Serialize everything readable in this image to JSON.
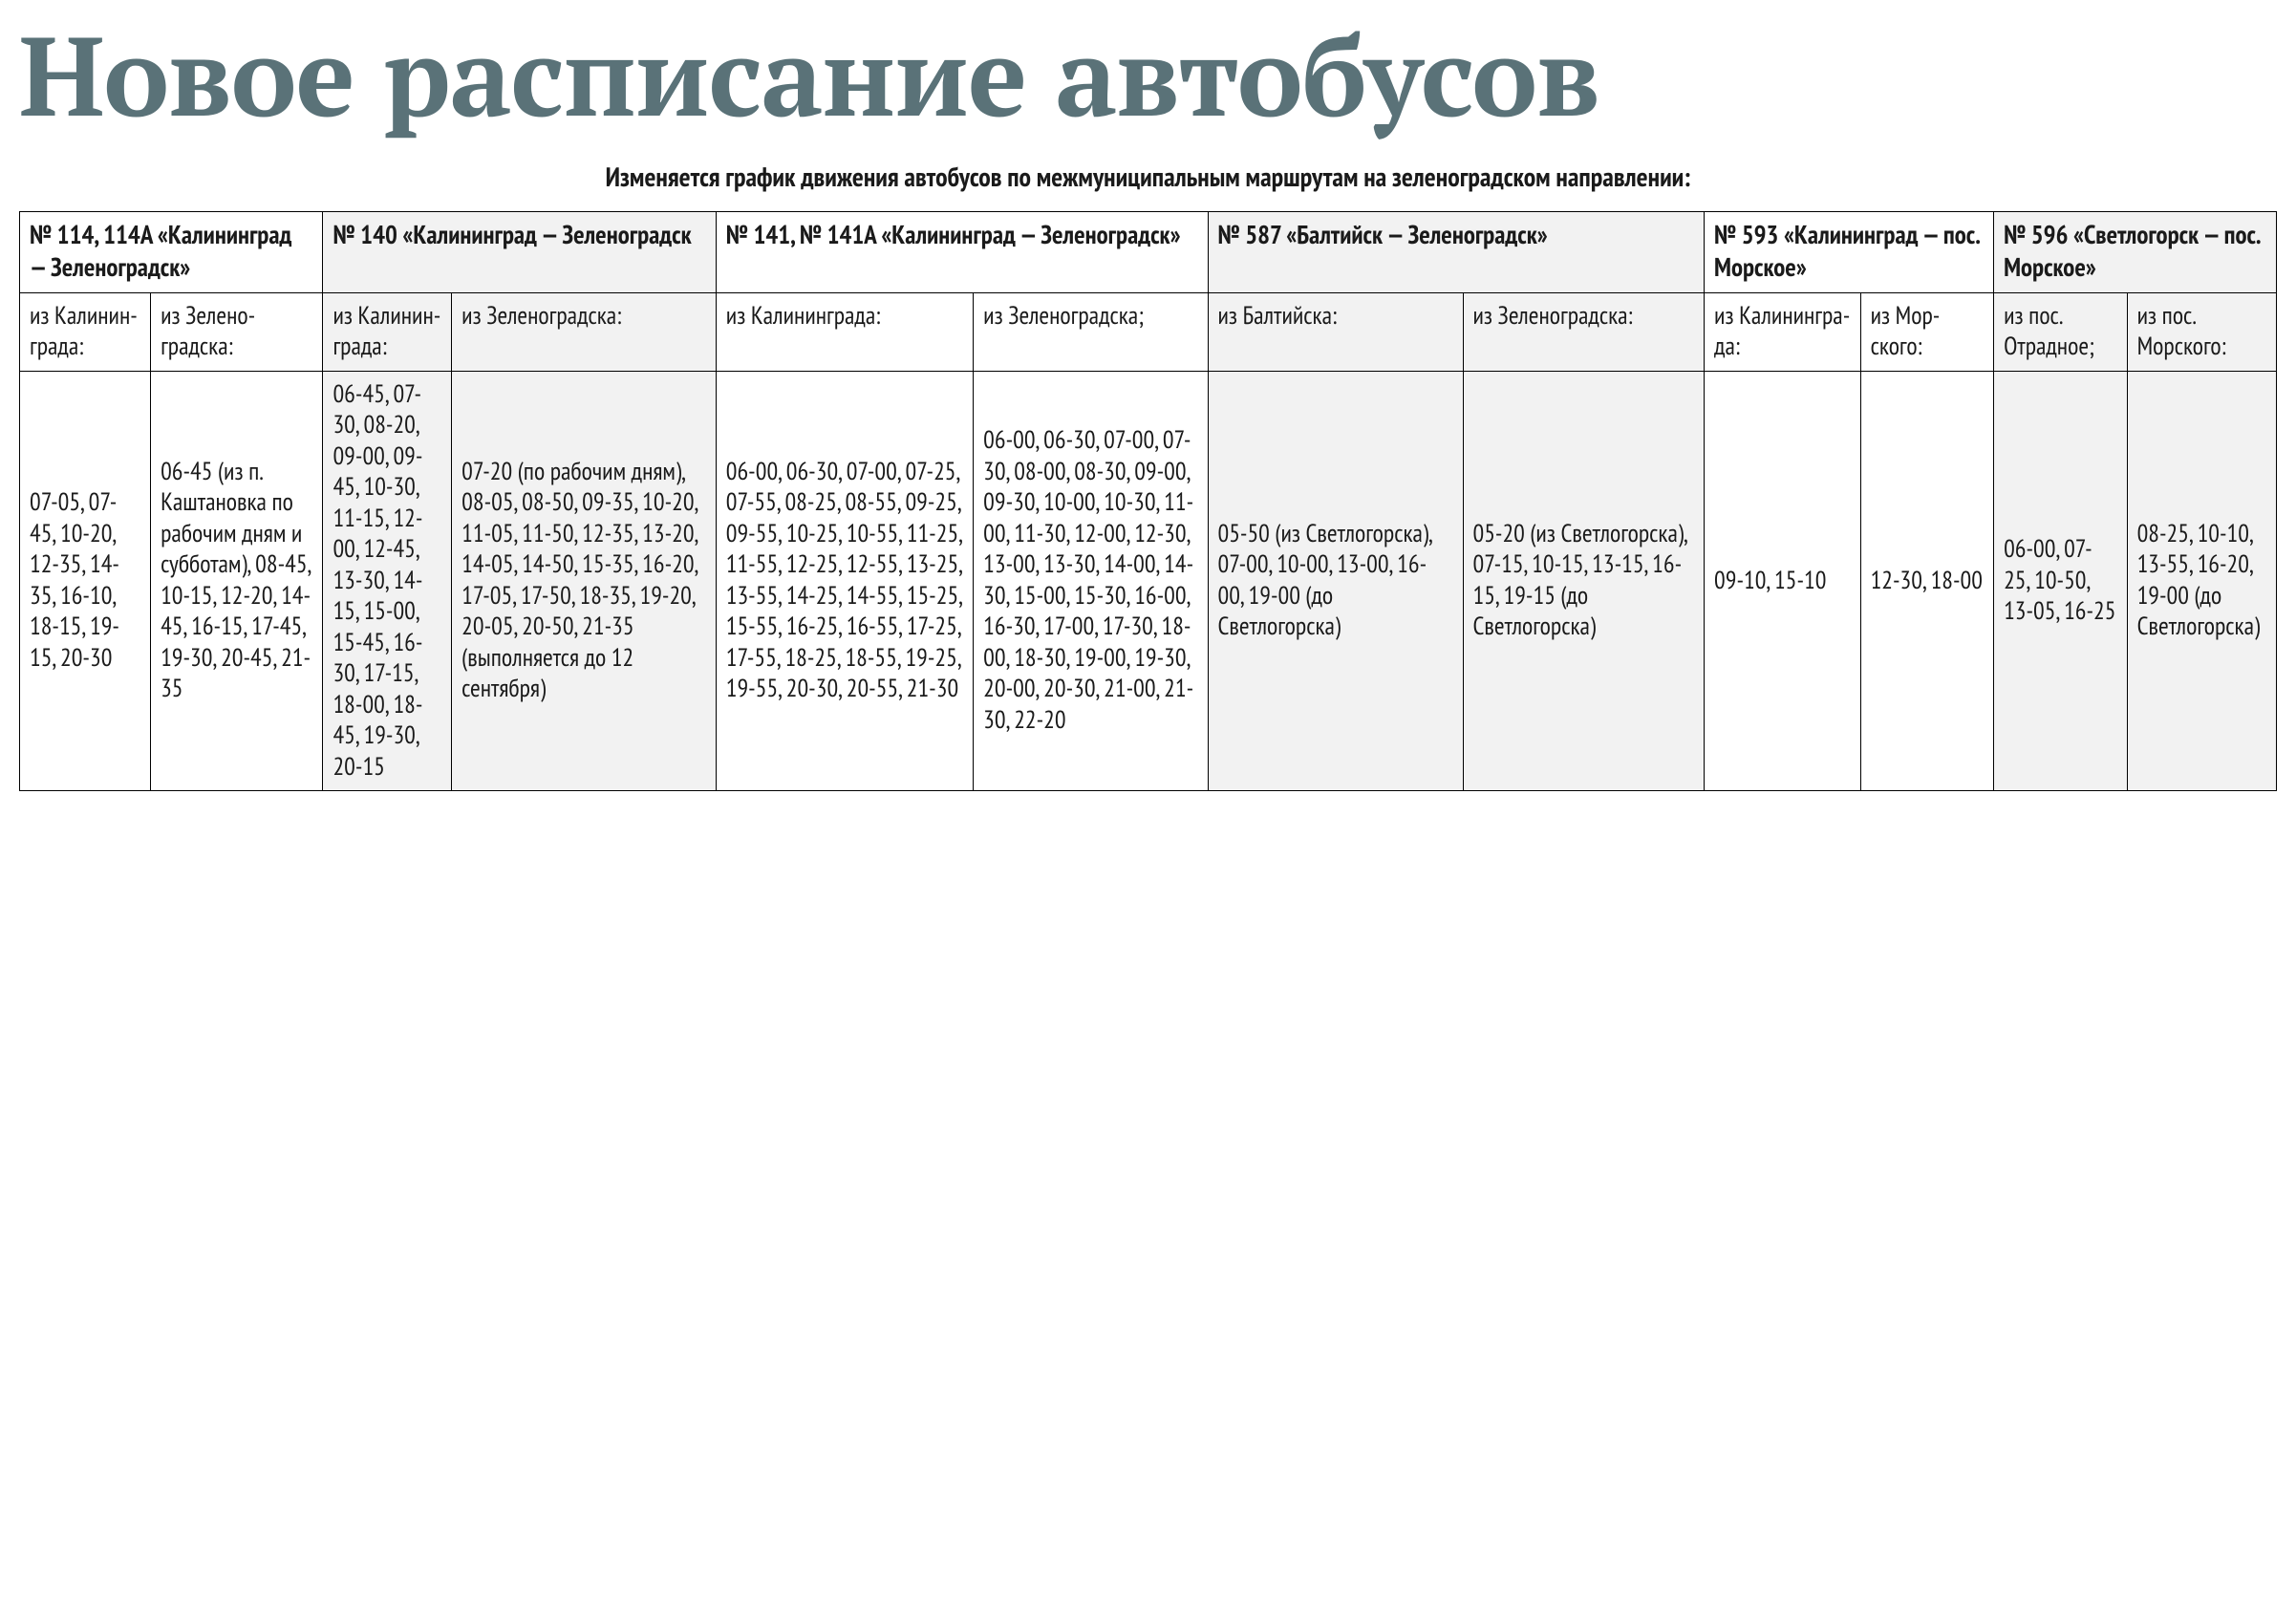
{
  "title": "Новое расписание автобусов",
  "subtitle": "Изменяется график движения автобусов по межмуниципальным маршрутам на зеленоградском направлении:",
  "colors": {
    "title": "#5a7278",
    "text": "#1a1a1a",
    "border": "#000000",
    "alt_bg": "#f2f2f2",
    "page_bg": "#ffffff"
  },
  "typography": {
    "title_fontsize": 116,
    "title_family": "PT Serif",
    "subtitle_fontsize": 28,
    "cell_fontsize": 26,
    "body_family": "PT Sans Narrow"
  },
  "routes": [
    {
      "header": "№ 114, 114А «Калининград — Зеленоградск»",
      "alt": false,
      "cols": [
        {
          "dir": "из Ка­линин­града:",
          "times": "07-05, 07-45, 10-20, 12-35, 14-35, 16-10, 18-15, 19-15, 20-30"
        },
        {
          "dir": "из Зелено­градска:",
          "times": "06-45 (из п. Кашта­новка по рабочим дням и субботам), 08-45, 10-15, 12-20, 14-45, 16-15, 17-45, 19-30, 20-45, 21-35"
        }
      ]
    },
    {
      "header": "№ 140 «Калининград — Зеленоградск",
      "alt": true,
      "cols": [
        {
          "dir": "из Ка­линин­града:",
          "times": "06-45, 07-30, 08-20, 09-00, 09-45, 10-30, 11-15, 12-00, 12-45, 13-30, 14-15, 15-00, 15-45, 16-30, 17-15, 18-00, 18-45, 19-30, 20-15"
        },
        {
          "dir": "из Зеленоградска:",
          "times": "07-20 (по рабочим дням), 08-05, 08-50, 09-35, 10-20, 11-05, 11-50, 12-35, 13-20, 14-05, 14-50, 15-35, 16-20, 17-05, 17-50, 18-35, 19-20, 20-05, 20-50, 21-35 (выполняется до 12 сентября)"
        }
      ]
    },
    {
      "header": "№ 141, № 141А «Калинин­град — Зеленоградск»",
      "alt": false,
      "cols": [
        {
          "dir": "из Калинин­града:",
          "times": "06-00, 06-30, 07-00, 07-25, 07-55, 08-25, 08-55, 09-25, 09-55, 10-25, 10-55, 11-25, 11-55, 12-25, 12-55, 13-25, 13-55, 14-25, 14-55, 15-25, 15-55, 16-25, 16-55, 17-25, 17-55, 18-25, 18-55, 19-25, 19-55, 20-30, 20-55, 21-30"
        },
        {
          "dir": "из Зелено­градска;",
          "times": "06-00, 06-30, 07-00, 07-30, 08-00, 08-30, 09-00, 09-30, 10-00, 10-30, 11-00, 11-30, 12-00, 12-30, 13-00, 13-30, 14-00, 14-30, 15-00, 15-30, 16-00, 16-30, 17-00, 17-30, 18-00, 18-30, 19-00, 19-30, 20-00, 20-30, 21-00, 21-30, 22-20"
        }
      ]
    },
    {
      "header": "№ 587 «Балтийск — Зеленоградск»",
      "alt": true,
      "cols": [
        {
          "dir": "из Балтийска:",
          "times": "05-50 (из Светлогорска), 07-00, 10-00, 13-00, 16-00, 19-00 (до Светлогорска)"
        },
        {
          "dir": "из Зелено­градска:",
          "times": "05-20 (из Свет­логорска), 07-15, 10-15, 13-15, 16-15, 19-15 (до Светлогорска)"
        }
      ]
    },
    {
      "header": "№ 593 «Калининград — пос. Морское»",
      "alt": false,
      "cols": [
        {
          "dir": "из Кали­нингра­да:",
          "times": "09-10, 15-10"
        },
        {
          "dir": "из Мор­ского:",
          "times": "12-30, 18-00"
        }
      ]
    },
    {
      "header": "№ 596 «Светлогорск — пос. Морское»",
      "alt": true,
      "cols": [
        {
          "dir": "из пос. Отрад­ное;",
          "times": "06-00, 07-25, 10-50, 13-05, 16-25"
        },
        {
          "dir": "из пос. Морско­го:",
          "times": "08-25, 10-10, 13-55, 16-20, 19-00 (до Свет­логорс­ка)"
        }
      ]
    }
  ]
}
